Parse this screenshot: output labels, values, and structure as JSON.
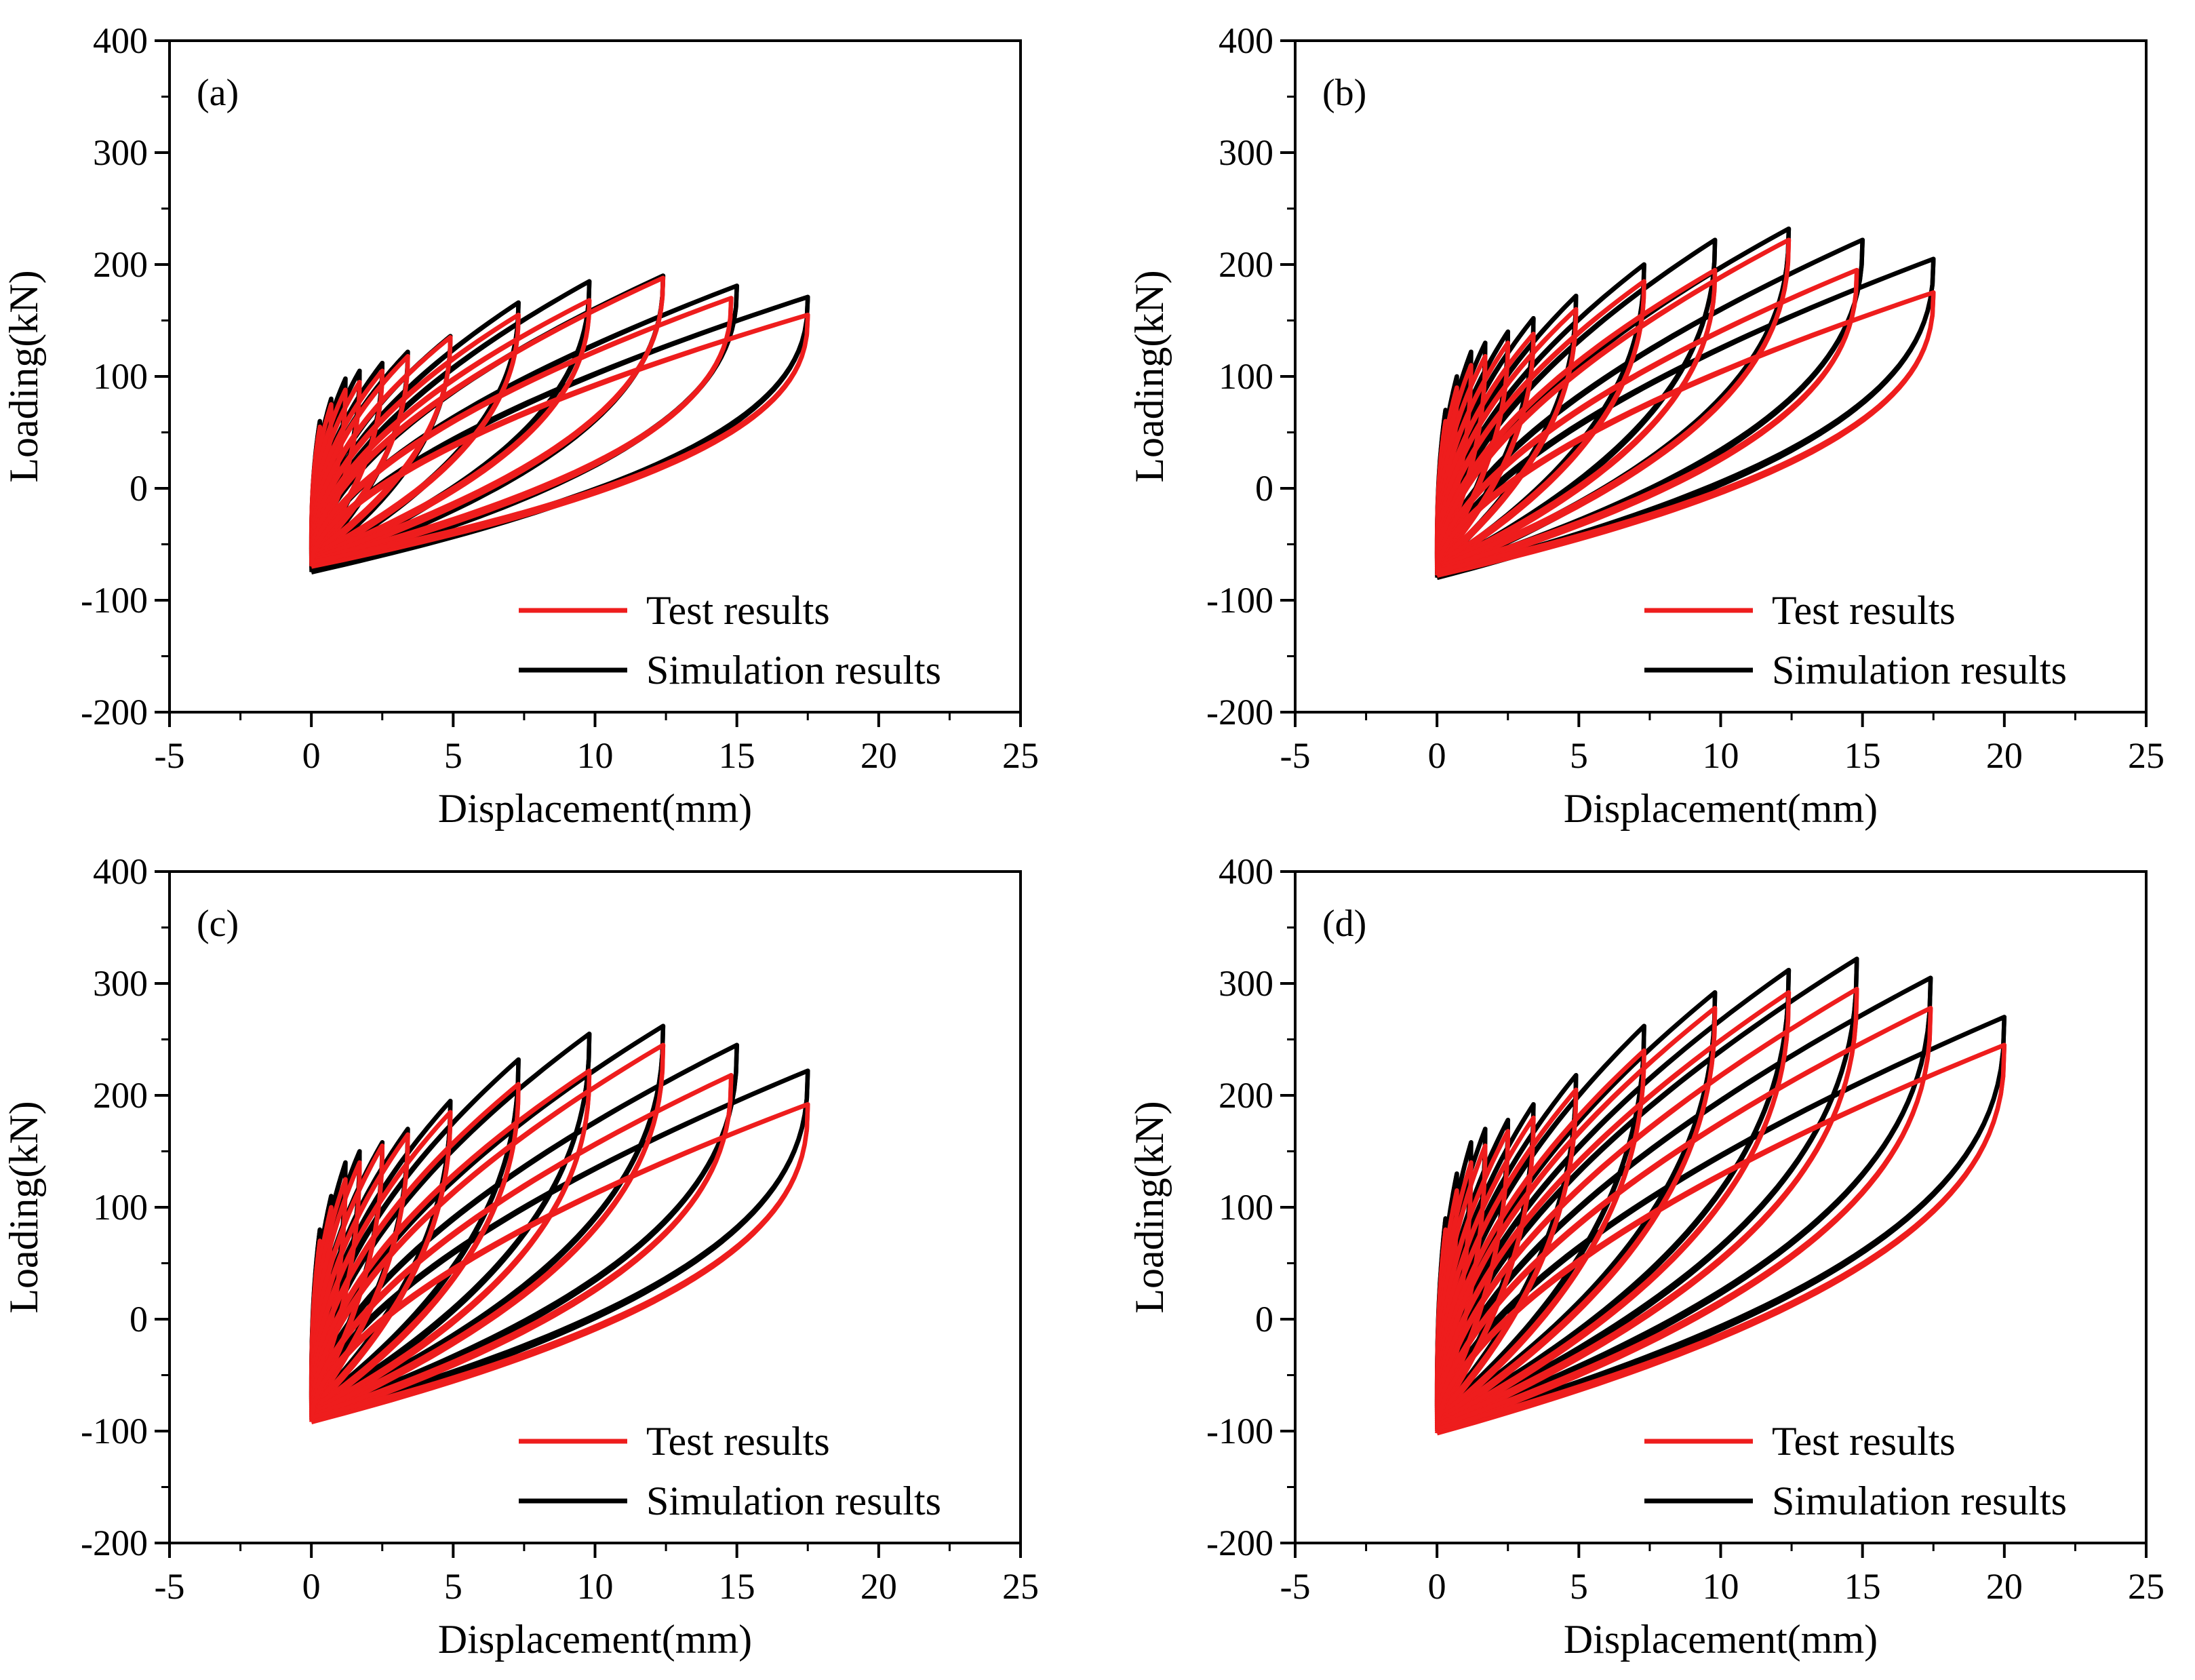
{
  "colors": {
    "test": "#ee1d1d",
    "simulation": "#000000",
    "frame": "#000000"
  },
  "chart_data": [
    {
      "type": "line",
      "panel_label": "(a)",
      "xlabel": "Displacement(mm)",
      "ylabel": "Loading(kN)",
      "xlim": [
        -5,
        25
      ],
      "ylim": [
        -200,
        400
      ],
      "xticks": [
        "-5",
        "0",
        "5",
        "10",
        "15",
        "20",
        "25"
      ],
      "yticks": [
        "-200",
        "-100",
        "0",
        "100",
        "200",
        "300",
        "400"
      ],
      "legend": {
        "location": "lower-right",
        "entries": [
          "Test results",
          "Simulation results"
        ]
      },
      "series": [
        {
          "name": "Simulation results",
          "peaks": [
            [
              0.3,
              60
            ],
            [
              0.7,
              80
            ],
            [
              1.2,
              98
            ],
            [
              1.7,
              105
            ],
            [
              2.5,
              112
            ],
            [
              3.4,
              122
            ],
            [
              4.9,
              136
            ],
            [
              7.3,
              166
            ],
            [
              9.8,
              185
            ],
            [
              12.4,
              190
            ],
            [
              15.0,
              181
            ],
            [
              17.5,
              171
            ]
          ],
          "residual_min": -75
        },
        {
          "name": "Test results",
          "peaks": [
            [
              0.3,
              55
            ],
            [
              0.7,
              75
            ],
            [
              1.2,
              88
            ],
            [
              1.7,
              95
            ],
            [
              2.5,
              105
            ],
            [
              3.4,
              118
            ],
            [
              4.9,
              135
            ],
            [
              7.3,
              155
            ],
            [
              9.8,
              168
            ],
            [
              12.4,
              188
            ],
            [
              14.8,
              170
            ],
            [
              17.5,
              155
            ]
          ],
          "residual_min": -70
        }
      ]
    },
    {
      "type": "line",
      "panel_label": "(b)",
      "xlabel": "Displacement(mm)",
      "ylabel": "Loading(kN)",
      "xlim": [
        -5,
        25
      ],
      "ylim": [
        -200,
        400
      ],
      "xticks": [
        "-5",
        "0",
        "5",
        "10",
        "15",
        "20",
        "25"
      ],
      "yticks": [
        "-200",
        "-100",
        "0",
        "100",
        "200",
        "300",
        "400"
      ],
      "legend": {
        "location": "lower-right",
        "entries": [
          "Test results",
          "Simulation results"
        ]
      },
      "series": [
        {
          "name": "Simulation results",
          "peaks": [
            [
              0.3,
              70
            ],
            [
              0.7,
              100
            ],
            [
              1.2,
              122
            ],
            [
              1.7,
              130
            ],
            [
              2.5,
              140
            ],
            [
              3.4,
              152
            ],
            [
              4.9,
              172
            ],
            [
              7.3,
              200
            ],
            [
              9.8,
              222
            ],
            [
              12.4,
              232
            ],
            [
              15.0,
              222
            ],
            [
              17.5,
              205
            ]
          ],
          "residual_min": -80
        },
        {
          "name": "Test results",
          "peaks": [
            [
              0.3,
              60
            ],
            [
              0.7,
              90
            ],
            [
              1.2,
              110
            ],
            [
              1.7,
              118
            ],
            [
              2.5,
              130
            ],
            [
              3.4,
              138
            ],
            [
              4.9,
              160
            ],
            [
              7.3,
              185
            ],
            [
              9.8,
              195
            ],
            [
              12.4,
              222
            ],
            [
              14.8,
              195
            ],
            [
              17.5,
              175
            ]
          ],
          "residual_min": -78
        }
      ]
    },
    {
      "type": "line",
      "panel_label": "(c)",
      "xlabel": "Displacement(mm)",
      "ylabel": "Loading(kN)",
      "xlim": [
        -5,
        25
      ],
      "ylim": [
        -200,
        400
      ],
      "xticks": [
        "-5",
        "0",
        "5",
        "10",
        "15",
        "20",
        "25"
      ],
      "yticks": [
        "-200",
        "-100",
        "0",
        "100",
        "200",
        "300",
        "400"
      ],
      "legend": {
        "location": "lower-right",
        "entries": [
          "Test results",
          "Simulation results"
        ]
      },
      "series": [
        {
          "name": "Simulation results",
          "peaks": [
            [
              0.3,
              80
            ],
            [
              0.7,
              110
            ],
            [
              1.2,
              140
            ],
            [
              1.7,
              150
            ],
            [
              2.5,
              158
            ],
            [
              3.4,
              170
            ],
            [
              4.9,
              195
            ],
            [
              7.3,
              232
            ],
            [
              9.8,
              255
            ],
            [
              12.4,
              262
            ],
            [
              15.0,
              245
            ],
            [
              17.5,
              222
            ]
          ],
          "residual_min": -90
        },
        {
          "name": "Test results",
          "peaks": [
            [
              0.3,
              70
            ],
            [
              0.7,
              100
            ],
            [
              1.2,
              125
            ],
            [
              1.7,
              140
            ],
            [
              2.5,
              155
            ],
            [
              3.4,
              165
            ],
            [
              4.9,
              185
            ],
            [
              7.3,
              210
            ],
            [
              9.8,
              222
            ],
            [
              12.4,
              245
            ],
            [
              14.8,
              218
            ],
            [
              17.5,
              192
            ]
          ],
          "residual_min": -92
        }
      ]
    },
    {
      "type": "line",
      "panel_label": "(d)",
      "xlabel": "Displacement(mm)",
      "ylabel": "Loading(kN)",
      "xlim": [
        -5,
        25
      ],
      "ylim": [
        -200,
        400
      ],
      "xticks": [
        "-5",
        "0",
        "5",
        "10",
        "15",
        "20",
        "25"
      ],
      "yticks": [
        "-200",
        "-100",
        "0",
        "100",
        "200",
        "300",
        "400"
      ],
      "legend": {
        "location": "lower-right",
        "entries": [
          "Test results",
          "Simulation results"
        ]
      },
      "series": [
        {
          "name": "Simulation results",
          "peaks": [
            [
              0.3,
              90
            ],
            [
              0.7,
              130
            ],
            [
              1.2,
              158
            ],
            [
              1.7,
              170
            ],
            [
              2.5,
              178
            ],
            [
              3.4,
              192
            ],
            [
              4.9,
              218
            ],
            [
              7.3,
              262
            ],
            [
              9.8,
              292
            ],
            [
              12.4,
              312
            ],
            [
              14.8,
              322
            ],
            [
              17.4,
              305
            ],
            [
              20.0,
              270
            ]
          ],
          "residual_min": -100
        },
        {
          "name": "Test results",
          "peaks": [
            [
              0.3,
              80
            ],
            [
              0.7,
              115
            ],
            [
              1.2,
              140
            ],
            [
              1.7,
              155
            ],
            [
              2.5,
              168
            ],
            [
              3.4,
              180
            ],
            [
              4.9,
              205
            ],
            [
              7.3,
              240
            ],
            [
              9.8,
              278
            ],
            [
              12.4,
              292
            ],
            [
              14.8,
              295
            ],
            [
              17.4,
              278
            ],
            [
              20.0,
              245
            ]
          ],
          "residual_min": -102
        }
      ]
    }
  ]
}
